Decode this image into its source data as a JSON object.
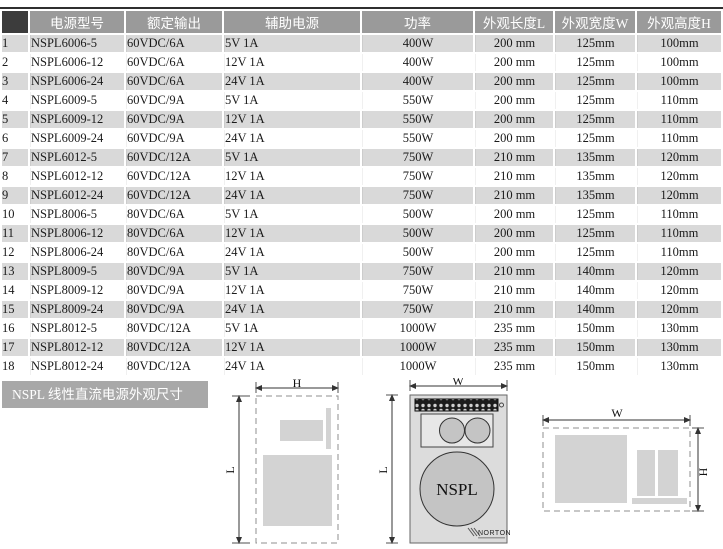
{
  "table": {
    "columns": [
      "电源型号",
      "额定输出",
      "辅助电源",
      "功率",
      "外观长度L",
      "外观宽度W",
      "外观高度H"
    ],
    "rows": [
      {
        "no": "1",
        "model": "NSPL6006-5",
        "output": "60VDC/6A",
        "aux": "5V 1A",
        "power": "400W",
        "length": "200 mm",
        "width": "125mm",
        "height": "100mm"
      },
      {
        "no": "2",
        "model": "NSPL6006-12",
        "output": "60VDC/6A",
        "aux": "12V 1A",
        "power": "400W",
        "length": "200 mm",
        "width": "125mm",
        "height": "100mm"
      },
      {
        "no": "3",
        "model": "NSPL6006-24",
        "output": "60VDC/6A",
        "aux": "24V 1A",
        "power": "400W",
        "length": "200 mm",
        "width": "125mm",
        "height": "100mm"
      },
      {
        "no": "4",
        "model": "NSPL6009-5",
        "output": "60VDC/9A",
        "aux": "5V 1A",
        "power": "550W",
        "length": "200 mm",
        "width": "125mm",
        "height": "110mm"
      },
      {
        "no": "5",
        "model": "NSPL6009-12",
        "output": "60VDC/9A",
        "aux": "12V 1A",
        "power": "550W",
        "length": "200 mm",
        "width": "125mm",
        "height": "110mm"
      },
      {
        "no": "6",
        "model": "NSPL6009-24",
        "output": "60VDC/9A",
        "aux": "24V 1A",
        "power": "550W",
        "length": "200 mm",
        "width": "125mm",
        "height": "110mm"
      },
      {
        "no": "7",
        "model": "NSPL6012-5",
        "output": "60VDC/12A",
        "aux": "5V 1A",
        "power": "750W",
        "length": "210 mm",
        "width": "135mm",
        "height": "120mm"
      },
      {
        "no": "8",
        "model": "NSPL6012-12",
        "output": "60VDC/12A",
        "aux": "12V 1A",
        "power": "750W",
        "length": "210 mm",
        "width": "135mm",
        "height": "120mm"
      },
      {
        "no": "9",
        "model": "NSPL6012-24",
        "output": "60VDC/12A",
        "aux": "24V 1A",
        "power": "750W",
        "length": "210 mm",
        "width": "135mm",
        "height": "120mm"
      },
      {
        "no": "10",
        "model": "NSPL8006-5",
        "output": "80VDC/6A",
        "aux": "5V 1A",
        "power": "500W",
        "length": "200 mm",
        "width": "125mm",
        "height": "110mm"
      },
      {
        "no": "11",
        "model": "NSPL8006-12",
        "output": "80VDC/6A",
        "aux": "12V 1A",
        "power": "500W",
        "length": "200 mm",
        "width": "125mm",
        "height": "110mm"
      },
      {
        "no": "12",
        "model": "NSPL8006-24",
        "output": "80VDC/6A",
        "aux": "24V 1A",
        "power": "500W",
        "length": "200 mm",
        "width": "125mm",
        "height": "110mm"
      },
      {
        "no": "13",
        "model": "NSPL8009-5",
        "output": "80VDC/9A",
        "aux": "5V 1A",
        "power": "750W",
        "length": "210 mm",
        "width": "140mm",
        "height": "120mm"
      },
      {
        "no": "14",
        "model": "NSPL8009-12",
        "output": "80VDC/9A",
        "aux": "12V 1A",
        "power": "750W",
        "length": "210 mm",
        "width": "140mm",
        "height": "120mm"
      },
      {
        "no": "15",
        "model": "NSPL8009-24",
        "output": "80VDC/9A",
        "aux": "24V 1A",
        "power": "750W",
        "length": "210 mm",
        "width": "140mm",
        "height": "120mm"
      },
      {
        "no": "16",
        "model": "NSPL8012-5",
        "output": "80VDC/12A",
        "aux": "5V 1A",
        "power": "1000W",
        "length": "235 mm",
        "width": "150mm",
        "height": "130mm"
      },
      {
        "no": "17",
        "model": "NSPL8012-12",
        "output": "80VDC/12A",
        "aux": "12V 1A",
        "power": "1000W",
        "length": "235 mm",
        "width": "150mm",
        "height": "130mm"
      },
      {
        "no": "18",
        "model": "NSPL8012-24",
        "output": "80VDC/12A",
        "aux": "24V 1A",
        "power": "1000W",
        "length": "235 mm",
        "width": "150mm",
        "height": "130mm"
      }
    ]
  },
  "section": {
    "banner": "NSPL 线性直流电源外观尺寸"
  },
  "diagrams": {
    "side_view": {
      "top_label": "H",
      "left_label": "L"
    },
    "front_view": {
      "top_label": "W",
      "left_label": "L",
      "panel_text": "NSPL",
      "logo_text": "NORTON"
    },
    "top_view": {
      "top_label": "W",
      "right_label": "H"
    }
  },
  "colors": {
    "header_bg": "#9a9a9a",
    "index_header_bg": "#3c3c3c",
    "row_alt_bg": "#d9d9d9",
    "banner_bg": "#a8a8a8",
    "panel_bg": "#dcdcdc"
  }
}
